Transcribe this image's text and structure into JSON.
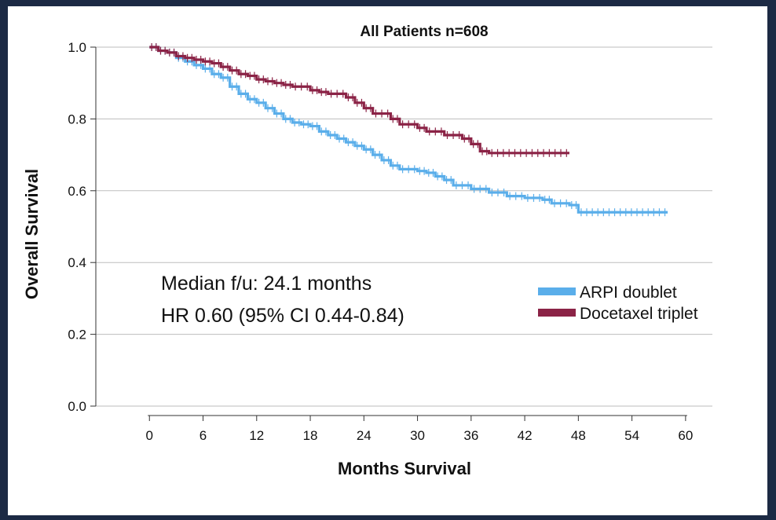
{
  "chart_data": {
    "type": "line",
    "title": "All Patients n=608",
    "xlabel": "Months Survival",
    "ylabel": "Overall Survival",
    "xlim": [
      -6,
      63
    ],
    "ylim": [
      0,
      1
    ],
    "xticks": [
      0,
      6,
      12,
      18,
      24,
      30,
      36,
      42,
      48,
      54,
      60
    ],
    "yticks": [
      0.0,
      0.2,
      0.4,
      0.6,
      0.8,
      1.0
    ],
    "ytick_labels": [
      "0.0",
      "0.2",
      "0.4",
      "0.6",
      "0.8",
      "1.0"
    ],
    "grid": "horizontal",
    "legend_position": "right-middle",
    "annotations": [
      "Median f/u: 24.1 months",
      "HR 0.60 (95% CI 0.44-0.84)"
    ],
    "series": [
      {
        "name": "ARPI doublet",
        "color": "#5aaeea",
        "step_points": [
          [
            0,
            1.0
          ],
          [
            1,
            0.99
          ],
          [
            2,
            0.985
          ],
          [
            3,
            0.97
          ],
          [
            4,
            0.96
          ],
          [
            5,
            0.95
          ],
          [
            6,
            0.94
          ],
          [
            7,
            0.925
          ],
          [
            8,
            0.915
          ],
          [
            9,
            0.89
          ],
          [
            10,
            0.87
          ],
          [
            11,
            0.855
          ],
          [
            12,
            0.845
          ],
          [
            13,
            0.83
          ],
          [
            14,
            0.815
          ],
          [
            15,
            0.8
          ],
          [
            16,
            0.79
          ],
          [
            17,
            0.785
          ],
          [
            18,
            0.78
          ],
          [
            19,
            0.765
          ],
          [
            20,
            0.755
          ],
          [
            21,
            0.745
          ],
          [
            22,
            0.735
          ],
          [
            23,
            0.725
          ],
          [
            24,
            0.715
          ],
          [
            25,
            0.7
          ],
          [
            26,
            0.685
          ],
          [
            27,
            0.67
          ],
          [
            28,
            0.66
          ],
          [
            30,
            0.655
          ],
          [
            31,
            0.65
          ],
          [
            32,
            0.64
          ],
          [
            33,
            0.63
          ],
          [
            34,
            0.615
          ],
          [
            36,
            0.605
          ],
          [
            38,
            0.595
          ],
          [
            40,
            0.585
          ],
          [
            42,
            0.58
          ],
          [
            44,
            0.575
          ],
          [
            45,
            0.565
          ],
          [
            47,
            0.56
          ],
          [
            48,
            0.54
          ],
          [
            58,
            0.54
          ]
        ]
      },
      {
        "name": "Docetaxel triplet",
        "color": "#8b2346",
        "step_points": [
          [
            0,
            1.0
          ],
          [
            1,
            0.99
          ],
          [
            2,
            0.985
          ],
          [
            3,
            0.975
          ],
          [
            4,
            0.97
          ],
          [
            5,
            0.965
          ],
          [
            6,
            0.96
          ],
          [
            7,
            0.955
          ],
          [
            8,
            0.945
          ],
          [
            9,
            0.935
          ],
          [
            10,
            0.925
          ],
          [
            11,
            0.92
          ],
          [
            12,
            0.91
          ],
          [
            13,
            0.905
          ],
          [
            14,
            0.9
          ],
          [
            15,
            0.895
          ],
          [
            16,
            0.89
          ],
          [
            18,
            0.88
          ],
          [
            19,
            0.875
          ],
          [
            20,
            0.87
          ],
          [
            22,
            0.86
          ],
          [
            23,
            0.845
          ],
          [
            24,
            0.83
          ],
          [
            25,
            0.815
          ],
          [
            27,
            0.8
          ],
          [
            28,
            0.785
          ],
          [
            30,
            0.775
          ],
          [
            31,
            0.765
          ],
          [
            33,
            0.755
          ],
          [
            35,
            0.745
          ],
          [
            36,
            0.73
          ],
          [
            37,
            0.71
          ],
          [
            38,
            0.705
          ],
          [
            47,
            0.705
          ]
        ]
      }
    ]
  }
}
